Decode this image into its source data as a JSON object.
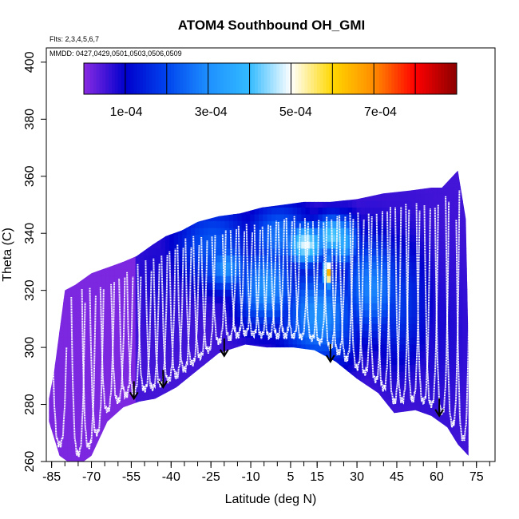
{
  "chart_data": {
    "type": "heatmap",
    "title": "ATOM4 Southbound OH_GMI",
    "flights_note": "Flts: 2,3,4,5,6,7",
    "dates_note": "MMDD: 0427,0429,0501,0503,0506,0509",
    "xlabel": "Latitude (deg N)",
    "ylabel": "Theta (C)",
    "xlim": [
      -87,
      82
    ],
    "ylim": [
      260,
      405
    ],
    "x_ticks": [
      -85,
      -70,
      -55,
      -40,
      -25,
      -10,
      5,
      15,
      30,
      45,
      60,
      75
    ],
    "x_minor_step": 5,
    "y_ticks": [
      260,
      280,
      300,
      320,
      340,
      360,
      380,
      400
    ],
    "colorbar": {
      "min": 0,
      "max": 0.00088,
      "ticks": [
        "1e-04",
        "3e-04",
        "5e-04",
        "7e-04"
      ],
      "tick_values": [
        0.0001,
        0.0003,
        0.0005,
        0.0007
      ],
      "segments": 9,
      "colors": [
        "#8a2be2",
        "#0000cd",
        "#0044ee",
        "#1e90ff",
        "#33bbff",
        "#ffffff",
        "#ffd700",
        "#ff8c00",
        "#ff0000",
        "#8b0000"
      ]
    },
    "domain_top": [
      [
        -86,
        282
      ],
      [
        -84,
        292
      ],
      [
        -80,
        320
      ],
      [
        -76,
        322
      ],
      [
        -70,
        326
      ],
      [
        -64,
        328
      ],
      [
        -58,
        330
      ],
      [
        -53,
        332
      ],
      [
        -47,
        336
      ],
      [
        -42,
        339
      ],
      [
        -36,
        341
      ],
      [
        -30,
        344
      ],
      [
        -22,
        346
      ],
      [
        -14,
        347
      ],
      [
        -6,
        349
      ],
      [
        2,
        350
      ],
      [
        10,
        351
      ],
      [
        20,
        351
      ],
      [
        30,
        352
      ],
      [
        40,
        354
      ],
      [
        50,
        355
      ],
      [
        58,
        356
      ],
      [
        62,
        356
      ],
      [
        66,
        360
      ],
      [
        68,
        362
      ],
      [
        71,
        345
      ],
      [
        72,
        300
      ]
    ],
    "domain_bottom": [
      [
        -86,
        274
      ],
      [
        -82,
        262
      ],
      [
        -76,
        258
      ],
      [
        -70,
        262
      ],
      [
        -64,
        274
      ],
      [
        -58,
        279
      ],
      [
        -52,
        281
      ],
      [
        -46,
        282
      ],
      [
        -38,
        286
      ],
      [
        -30,
        292
      ],
      [
        -22,
        298
      ],
      [
        -12,
        301
      ],
      [
        -4,
        300
      ],
      [
        6,
        300
      ],
      [
        14,
        299
      ],
      [
        22,
        295
      ],
      [
        30,
        289
      ],
      [
        38,
        284
      ],
      [
        44,
        277
      ],
      [
        52,
        278
      ],
      [
        58,
        276
      ],
      [
        64,
        272
      ],
      [
        68,
        266
      ],
      [
        72,
        262
      ]
    ],
    "oh_field": [
      {
        "lat": -80,
        "theta": 300,
        "value": 2e-05,
        "sigma_lat": 10,
        "sigma_theta": 30
      },
      {
        "lat": -65,
        "theta": 295,
        "value": 2e-05,
        "sigma_lat": 9,
        "sigma_theta": 25
      },
      {
        "lat": -52,
        "theta": 300,
        "value": 3e-05,
        "sigma_lat": 6,
        "sigma_theta": 20
      },
      {
        "lat": -45,
        "theta": 325,
        "value": 8e-05,
        "sigma_lat": 8,
        "sigma_theta": 12
      },
      {
        "lat": -25,
        "theta": 335,
        "value": 0.00022,
        "sigma_lat": 10,
        "sigma_theta": 10
      },
      {
        "lat": -20,
        "theta": 327,
        "value": 0.0003,
        "sigma_lat": 6,
        "sigma_theta": 6
      },
      {
        "lat": -5,
        "theta": 320,
        "value": 0.0003,
        "sigma_lat": 8,
        "sigma_theta": 10
      },
      {
        "lat": 0,
        "theta": 338,
        "value": 0.00026,
        "sigma_lat": 8,
        "sigma_theta": 8
      },
      {
        "lat": 10,
        "theta": 335,
        "value": 0.00048,
        "sigma_lat": 5,
        "sigma_theta": 5
      },
      {
        "lat": 20,
        "theta": 338,
        "value": 0.00042,
        "sigma_lat": 5,
        "sigma_theta": 5
      },
      {
        "lat": 24,
        "theta": 336,
        "value": 0.00036,
        "sigma_lat": 4,
        "sigma_theta": 6
      },
      {
        "lat": 15,
        "theta": 310,
        "value": 0.0003,
        "sigma_lat": 10,
        "sigma_theta": 12
      },
      {
        "lat": 18,
        "theta": 325,
        "value": 0.00082,
        "sigma_lat": 0.8,
        "sigma_theta": 3.5
      },
      {
        "lat": 35,
        "theta": 320,
        "value": 0.00028,
        "sigma_lat": 8,
        "sigma_theta": 12
      },
      {
        "lat": 45,
        "theta": 315,
        "value": 0.00018,
        "sigma_lat": 8,
        "sigma_theta": 15
      },
      {
        "lat": 60,
        "theta": 305,
        "value": 8e-05,
        "sigma_lat": 8,
        "sigma_theta": 20
      },
      {
        "lat": 68,
        "theta": 340,
        "value": 3e-05,
        "sigma_lat": 4,
        "sigma_theta": 20
      }
    ],
    "oh_background": 5e-05,
    "profile_latitudes": [
      -82,
      -75,
      -71,
      -68,
      -64,
      -60,
      -57,
      -54,
      -50,
      -47,
      -44,
      -41,
      -38,
      -35,
      -32,
      -29,
      -26,
      -22,
      -18,
      -15,
      -12,
      -9,
      -6,
      -3,
      0,
      3,
      6,
      9,
      13,
      16,
      20,
      23,
      26,
      30,
      33,
      37,
      40,
      44,
      47,
      51,
      55,
      58,
      62,
      66,
      70
    ],
    "flight_bottoms": [
      {
        "lat": -54,
        "theta": 282
      },
      {
        "lat": -43,
        "theta": 286
      },
      {
        "lat": -20,
        "theta": 297
      },
      {
        "lat": 20,
        "theta": 295
      },
      {
        "lat": 61,
        "theta": 276
      }
    ]
  }
}
